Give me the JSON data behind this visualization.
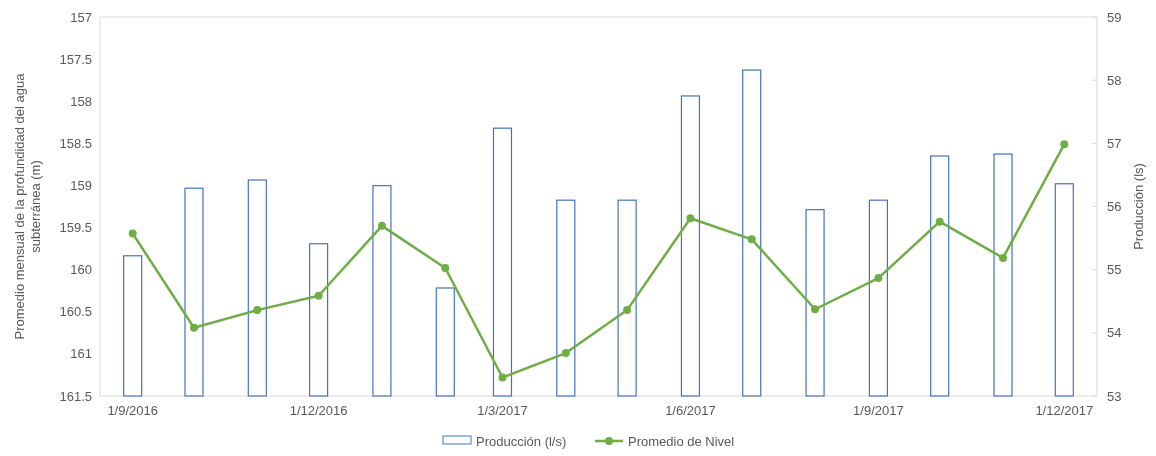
{
  "chart_data": {
    "type": "bar",
    "x": [
      "2016-09-01",
      "2016-10-01",
      "2016-11-01",
      "2016-12-01",
      "2017-01-01",
      "2017-02-01",
      "2017-03-01",
      "2017-04-01",
      "2017-05-01",
      "2017-06-01",
      "2017-07-01",
      "2017-08-01",
      "2017-09-01",
      "2017-10-01",
      "2017-11-01",
      "2017-12-01"
    ],
    "series": [
      {
        "name": "Producción (l/s)",
        "axis": "y2",
        "color": "#4472c4",
        "values": [
          55.22,
          56.29,
          56.42,
          55.41,
          56.33,
          54.71,
          57.24,
          56.1,
          56.1,
          57.75,
          58.16,
          55.95,
          56.1,
          56.8,
          56.83,
          56.36
        ]
      },
      {
        "name": "Promedio de Nivel",
        "type": "line",
        "axis": "y",
        "color": "#70ad47",
        "marker": "circle",
        "values": [
          159.57,
          160.69,
          160.48,
          160.31,
          159.48,
          159.98,
          161.28,
          160.99,
          160.48,
          159.39,
          159.64,
          160.47,
          160.1,
          159.43,
          159.86,
          158.51
        ]
      }
    ],
    "ylabel": "Promedio mensual de la profundidad del agua subterránea (m)",
    "y2label": "Producción (ls)",
    "xlim": [
      "2016-08-16",
      "2017-12-17"
    ],
    "xticks": [
      {
        "value": "2016-09-01",
        "label": "1/9/2016"
      },
      {
        "value": "2016-12-01",
        "label": "1/12/2016"
      },
      {
        "value": "2017-03-01",
        "label": "1/3/2017"
      },
      {
        "value": "2017-06-01",
        "label": "1/6/2017"
      },
      {
        "value": "2017-09-01",
        "label": "1/9/2017"
      },
      {
        "value": "2017-12-01",
        "label": "1/12/2017"
      }
    ],
    "ylim": [
      161.5,
      157
    ],
    "yticks": [
      157,
      157.5,
      158,
      158.5,
      159,
      159.5,
      160,
      160.5,
      161,
      161.5
    ],
    "y2lim": [
      53,
      59
    ],
    "y2ticks": [
      53,
      54,
      55,
      56,
      57,
      58,
      59
    ],
    "legend": "bottom"
  }
}
